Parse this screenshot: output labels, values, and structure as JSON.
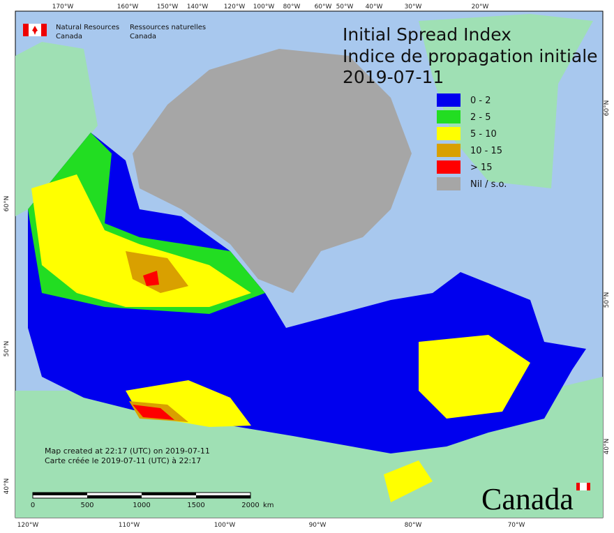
{
  "header": {
    "agency_en": [
      "Natural Resources",
      "Canada"
    ],
    "agency_fr": [
      "Ressources naturelles",
      "Canada"
    ]
  },
  "title": [
    "Initial Spread Index",
    "Indice de propagation initiale",
    "2019-07-11"
  ],
  "legend": [
    {
      "label": "0 - 2",
      "color": "#0000ee"
    },
    {
      "label": "2 - 5",
      "color": "#22dd22"
    },
    {
      "label": "5 - 10",
      "color": "#ffff00"
    },
    {
      "label": "10 - 15",
      "color": "#d9a000"
    },
    {
      "label": "> 15",
      "color": "#ff0000"
    },
    {
      "label": "Nil / s.o.",
      "color": "#a6a6a6"
    }
  ],
  "top_ticks": [
    "170°W",
    "160°W",
    "150°W",
    "140°W",
    "120°W",
    "100°W",
    "80°W",
    "60°W",
    "50°W",
    "40°W",
    "30°W",
    "20°W"
  ],
  "bottom_ticks": [
    "120°W",
    "110°W",
    "100°W",
    "90°W",
    "80°W",
    "70°W"
  ],
  "left_ticks": [
    "60°N",
    "50°N",
    "40°N"
  ],
  "right_ticks": [
    "60°N",
    "50°N",
    "40°N"
  ],
  "notes": [
    "Map created at 22:17 (UTC) on 2019-07-11",
    "Carte créée le 2019-07-11 (UTC) à 22:17"
  ],
  "scale_bar": {
    "labels": [
      "0",
      "500",
      "1000",
      "1500",
      "2000"
    ],
    "unit": "km"
  },
  "wordmark": "Canada"
}
